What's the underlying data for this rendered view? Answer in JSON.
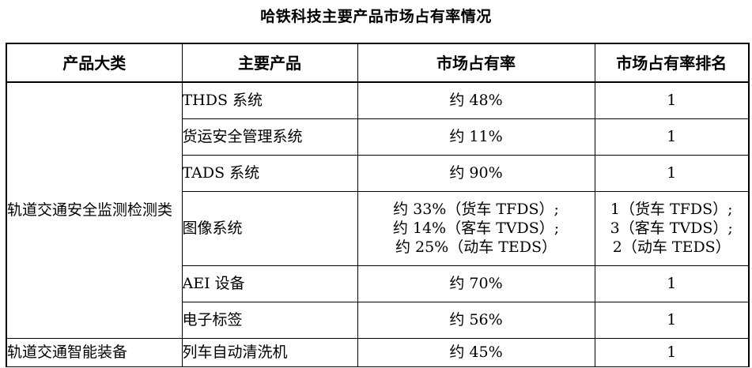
{
  "title": "哈铁科技主要产品市场占有率情况",
  "headers": {
    "category": "产品大类",
    "product": "主要产品",
    "share": "市场占有率",
    "rank": "市场占有率排名"
  },
  "categories": {
    "safety": "轨道交通安全监测检测类",
    "smart": "轨道交通智能装备"
  },
  "rows": [
    {
      "product": "THDS 系统",
      "share": [
        "约 48%"
      ],
      "rank": [
        "1"
      ]
    },
    {
      "product": "货运安全管理系统",
      "share": [
        "约 11%"
      ],
      "rank": [
        "1"
      ]
    },
    {
      "product": "TADS 系统",
      "share": [
        "约 90%"
      ],
      "rank": [
        "1"
      ]
    },
    {
      "product": "图像系统",
      "share": [
        "约 33%（货车 TFDS）;",
        "约 14%（客车 TVDS）;",
        "约 25%（动车 TEDS）"
      ],
      "rank": [
        "1（货车 TFDS）;",
        "3（客车 TVDS）;",
        "2（动车 TEDS）"
      ]
    },
    {
      "product": "AEI 设备",
      "share": [
        "约 70%"
      ],
      "rank": [
        "1"
      ]
    },
    {
      "product": "电子标签",
      "share": [
        "约 56%"
      ],
      "rank": [
        "1"
      ]
    },
    {
      "product": "列车自动清洗机",
      "share": [
        "约 45%"
      ],
      "rank": [
        "1"
      ]
    }
  ]
}
